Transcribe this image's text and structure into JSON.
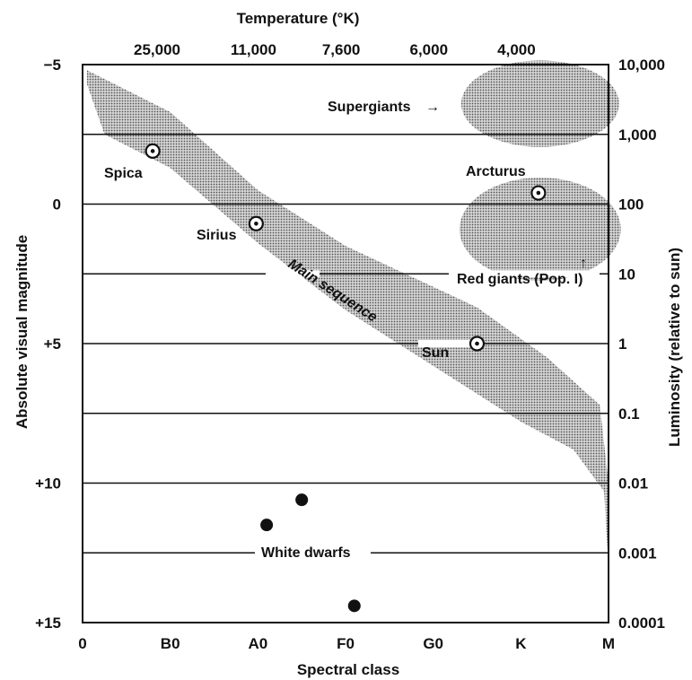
{
  "chart_data": {
    "type": "scatter",
    "title": "",
    "xlabel": "Spectral class",
    "ylabel": "Absolute visual magnitude",
    "x2label": "Temperature (°K)",
    "y2label": "Luminosity (relative to sun)",
    "x_ticks": [
      {
        "x": 0,
        "label": "0"
      },
      {
        "x": 1,
        "label": "B0"
      },
      {
        "x": 2,
        "label": "A0"
      },
      {
        "x": 3,
        "label": "F0"
      },
      {
        "x": 4,
        "label": "G0"
      },
      {
        "x": 5,
        "label": "K"
      },
      {
        "x": 6,
        "label": "M"
      }
    ],
    "y_ticks": [
      {
        "mag": -5,
        "label": "−5"
      },
      {
        "mag": 0,
        "label": "0"
      },
      {
        "mag": 5,
        "label": "+5"
      },
      {
        "mag": 10,
        "label": "+10"
      },
      {
        "mag": 15,
        "label": "+15"
      }
    ],
    "temperature_ticks": [
      {
        "x": 0.85,
        "label": "25,000"
      },
      {
        "x": 1.95,
        "label": "11,000"
      },
      {
        "x": 2.95,
        "label": "7,600"
      },
      {
        "x": 3.95,
        "label": "6,000"
      },
      {
        "x": 4.95,
        "label": "4,000"
      }
    ],
    "luminosity_ticks": [
      {
        "mag": -5,
        "label": "10,000"
      },
      {
        "mag": -2.5,
        "label": "1,000"
      },
      {
        "mag": 0,
        "label": "100"
      },
      {
        "mag": 2.5,
        "label": "10"
      },
      {
        "mag": 5,
        "label": "1"
      },
      {
        "mag": 7.5,
        "label": "0.1"
      },
      {
        "mag": 10,
        "label": "0.01"
      },
      {
        "mag": 12.5,
        "label": "0.001"
      },
      {
        "mag": 15,
        "label": "0.0001"
      }
    ],
    "xlim": [
      0,
      6
    ],
    "ylim": [
      -5,
      15
    ],
    "gridlines_mag": [
      -2.5,
      0,
      2.5,
      5,
      7.5,
      10,
      12.5
    ],
    "regions": [
      {
        "name": "Main sequence",
        "label": "Main sequence",
        "upper": [
          [
            0.05,
            -4.8
          ],
          [
            1.0,
            -3.3
          ],
          [
            2.0,
            -0.5
          ],
          [
            3.0,
            1.5
          ],
          [
            4.5,
            3.7
          ],
          [
            5.3,
            5.5
          ],
          [
            5.9,
            7.2
          ],
          [
            6.0,
            10
          ]
        ],
        "lower": [
          [
            6.0,
            13
          ],
          [
            5.95,
            10.3
          ],
          [
            5.6,
            8.8
          ],
          [
            5.0,
            7.8
          ],
          [
            4.0,
            5.8
          ],
          [
            3.0,
            3.8
          ],
          [
            2.0,
            1.4
          ],
          [
            1.0,
            -1.3
          ],
          [
            0.25,
            -2.5
          ],
          [
            0.05,
            -4.3
          ]
        ]
      },
      {
        "name": "Supergiants",
        "label": "Supergiants",
        "cx": 5.22,
        "cy": -3.6,
        "rx": 0.9,
        "ry": 1.55
      },
      {
        "name": "Red giants",
        "label": "Red giants (Pop. I)",
        "cx": 5.22,
        "cy": 0.9,
        "rx": 0.92,
        "ry": 1.85
      }
    ],
    "stars": [
      {
        "name": "Spica",
        "x": 0.8,
        "mag": -1.9,
        "type": "sun-symbol"
      },
      {
        "name": "Sirius",
        "x": 1.98,
        "mag": 0.7,
        "type": "sun-symbol"
      },
      {
        "name": "Sun",
        "x": 4.5,
        "mag": 5.0,
        "type": "sun-symbol"
      },
      {
        "name": "Arcturus",
        "x": 5.2,
        "mag": -0.4,
        "type": "sun-symbol"
      }
    ],
    "white_dwarfs": [
      {
        "x": 2.1,
        "mag": 11.5
      },
      {
        "x": 2.5,
        "mag": 10.6
      },
      {
        "x": 3.1,
        "mag": 14.4
      }
    ],
    "white_dwarf_label": "White dwarfs",
    "supergiants_arrow": "→",
    "red_giants_arrow": "↑"
  }
}
